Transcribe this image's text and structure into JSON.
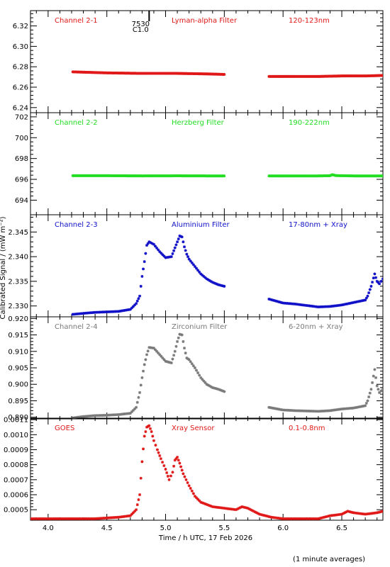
{
  "colors": {
    "red": "#e01818",
    "green": "#22dd22",
    "blue": "#1010c8",
    "grey": "#7a7a7a",
    "axis": "#000000"
  },
  "footnote": "(1 minute averages)",
  "chart_data": {
    "type": "scatter",
    "shared_x": {
      "label": "Time / h UTC, 17 Feb 2026",
      "range": [
        3.85,
        6.85
      ],
      "ticks": [
        4.0,
        4.5,
        5.0,
        5.5,
        6.0,
        6.5
      ],
      "tick_labels": [
        "4.0",
        "4.5",
        "5.0",
        "5.5",
        "6.0",
        "6.5"
      ]
    },
    "shared_ylabel": "Calibrated Signal / (mW m⁻²)",
    "annotation": {
      "x": 4.86,
      "labels": [
        "7530",
        "C1.0"
      ]
    },
    "panels": [
      {
        "name": "Channel 2-1",
        "filter": "Lyman-alpha Filter",
        "band": "120-123nm",
        "color": "red",
        "ylim": [
          6.235,
          6.335
        ],
        "yticks": [
          6.24,
          6.26,
          6.28,
          6.3,
          6.32
        ],
        "ytick_labels": [
          "6.24",
          "6.26",
          "6.28",
          "6.30",
          "6.32"
        ],
        "series": [
          {
            "x": [
              4.21,
              4.5,
              4.8,
              5.1,
              5.35,
              5.5
            ],
            "y": [
              6.275,
              6.274,
              6.2735,
              6.2735,
              6.273,
              6.2725
            ]
          },
          {
            "x": [
              5.88,
              6.1,
              6.3,
              6.5,
              6.7,
              6.85
            ],
            "y": [
              6.2705,
              6.2705,
              6.2705,
              6.271,
              6.271,
              6.2715
            ]
          }
        ]
      },
      {
        "name": "Channel 2-2",
        "filter": "Herzberg Filter",
        "band": "190-222nm",
        "color": "green",
        "ylim": [
          692.6,
          702.4
        ],
        "yticks": [
          694,
          696,
          698,
          700,
          702
        ],
        "ytick_labels": [
          "694",
          "696",
          "698",
          "700",
          "702"
        ],
        "series": [
          {
            "x": [
              4.21,
              4.5,
              4.8,
              5.1,
              5.35,
              5.5
            ],
            "y": [
              696.35,
              696.35,
              696.33,
              696.34,
              696.33,
              696.33
            ]
          },
          {
            "x": [
              5.88,
              6.1,
              6.3,
              6.4,
              6.42,
              6.45,
              6.6,
              6.85
            ],
            "y": [
              696.33,
              696.33,
              696.33,
              696.35,
              696.45,
              696.36,
              696.33,
              696.33
            ]
          }
        ]
      },
      {
        "name": "Channel 2-3",
        "filter": "Aluminium Filter",
        "band": "17-80nm + Xray",
        "color": "blue",
        "ylim": [
          2.3278,
          2.3485
        ],
        "yticks": [
          2.33,
          2.335,
          2.34,
          2.345
        ],
        "ytick_labels": [
          "2.330",
          "2.335",
          "2.340",
          "2.345"
        ],
        "series": [
          {
            "x": [
              4.21,
              4.3,
              4.4,
              4.5,
              4.6,
              4.7,
              4.75,
              4.78,
              4.8,
              4.82,
              4.84,
              4.86,
              4.9,
              4.95,
              5.0,
              5.05,
              5.08,
              5.1,
              5.12,
              5.14,
              5.16,
              5.18,
              5.2,
              5.25,
              5.3,
              5.35,
              5.4,
              5.45,
              5.5
            ],
            "y": [
              2.3283,
              2.3285,
              2.3287,
              2.3288,
              2.3289,
              2.3293,
              2.3305,
              2.332,
              2.336,
              2.339,
              2.3423,
              2.343,
              2.3425,
              2.341,
              2.3398,
              2.34,
              2.3418,
              2.343,
              2.3442,
              2.344,
              2.342,
              2.3405,
              2.3395,
              2.338,
              2.3365,
              2.3355,
              2.3348,
              2.3343,
              2.334
            ]
          },
          {
            "x": [
              5.88,
              6.0,
              6.1,
              6.2,
              6.3,
              6.4,
              6.5,
              6.6,
              6.7,
              6.72,
              6.75,
              6.78,
              6.8,
              6.82,
              6.85
            ],
            "y": [
              2.3314,
              2.3306,
              2.3304,
              2.3301,
              2.3298,
              2.3299,
              2.3302,
              2.3307,
              2.3312,
              2.332,
              2.334,
              2.3365,
              2.335,
              2.3345,
              2.3355
            ]
          }
        ]
      },
      {
        "name": "Channel 2-4",
        "filter": "Zirconium Filter",
        "band": "6-20nm + Xray",
        "color": "grey",
        "ylim": [
          0.8895,
          0.9205
        ],
        "yticks": [
          0.89,
          0.895,
          0.9,
          0.905,
          0.91,
          0.915,
          0.92
        ],
        "ytick_labels": [
          "0.890",
          "0.895",
          "0.900",
          "0.905",
          "0.910",
          "0.915",
          "0.920"
        ],
        "series": [
          {
            "x": [
              4.21,
              4.3,
              4.4,
              4.5,
              4.6,
              4.7,
              4.75,
              4.78,
              4.8,
              4.82,
              4.84,
              4.86,
              4.9,
              4.95,
              5.0,
              5.05,
              5.08,
              5.1,
              5.12,
              5.14,
              5.16,
              5.18,
              5.2,
              5.25,
              5.3,
              5.35,
              5.4,
              5.45,
              5.5
            ],
            "y": [
              0.8898,
              0.8902,
              0.8905,
              0.8906,
              0.8908,
              0.8912,
              0.893,
              0.8975,
              0.902,
              0.906,
              0.909,
              0.9112,
              0.911,
              0.909,
              0.907,
              0.9065,
              0.91,
              0.913,
              0.9152,
              0.915,
              0.911,
              0.908,
              0.9075,
              0.905,
              0.902,
              0.9,
              0.899,
              0.8985,
              0.8978
            ]
          },
          {
            "x": [
              5.88,
              6.0,
              6.1,
              6.2,
              6.3,
              6.4,
              6.5,
              6.6,
              6.7,
              6.72,
              6.75,
              6.78,
              6.8,
              6.82,
              6.85
            ],
            "y": [
              0.893,
              0.8922,
              0.892,
              0.8919,
              0.8918,
              0.892,
              0.8925,
              0.8928,
              0.8935,
              0.895,
              0.8985,
              0.9045,
              0.8995,
              0.8975,
              0.8985
            ]
          }
        ]
      },
      {
        "name": "GOES",
        "filter": "Xray Sensor",
        "band": "0.1-0.8nm",
        "color": "red",
        "ylim": [
          0.00043,
          0.00111
        ],
        "yticks": [
          0.0005,
          0.0006,
          0.0007,
          0.0008,
          0.0009,
          0.001,
          0.0011
        ],
        "ytick_labels": [
          "0.0005",
          "0.0006",
          "0.0007",
          "0.0008",
          "0.0009",
          "0.0010",
          "0.0011"
        ],
        "series": [
          {
            "x": [
              3.85,
              4.0,
              4.2,
              4.4,
              4.6,
              4.7,
              4.75,
              4.78,
              4.8,
              4.82,
              4.84,
              4.86,
              4.88,
              4.9,
              4.93,
              4.96,
              5.0,
              5.03,
              5.06,
              5.08,
              5.1,
              5.12,
              5.15,
              5.2,
              5.25,
              5.3,
              5.4,
              5.5,
              5.6,
              5.65,
              5.7,
              5.8,
              5.9,
              6.0,
              6.1,
              6.2,
              6.3,
              6.4,
              6.5,
              6.55,
              6.6,
              6.7,
              6.8,
              6.85
            ],
            "y": [
              0.00044,
              0.00044,
              0.00044,
              0.00044,
              0.00045,
              0.00046,
              0.0005,
              0.0006,
              0.00082,
              0.00099,
              0.00105,
              0.00106,
              0.00102,
              0.00096,
              0.0009,
              0.00084,
              0.00077,
              0.0007,
              0.00075,
              0.00083,
              0.00085,
              0.00081,
              0.00074,
              0.00066,
              0.00059,
              0.00055,
              0.00052,
              0.00051,
              0.0005,
              0.00052,
              0.00051,
              0.00047,
              0.00045,
              0.00044,
              0.00044,
              0.00044,
              0.00044,
              0.00046,
              0.00047,
              0.00049,
              0.00048,
              0.00047,
              0.00048,
              0.00049
            ]
          }
        ]
      }
    ]
  }
}
